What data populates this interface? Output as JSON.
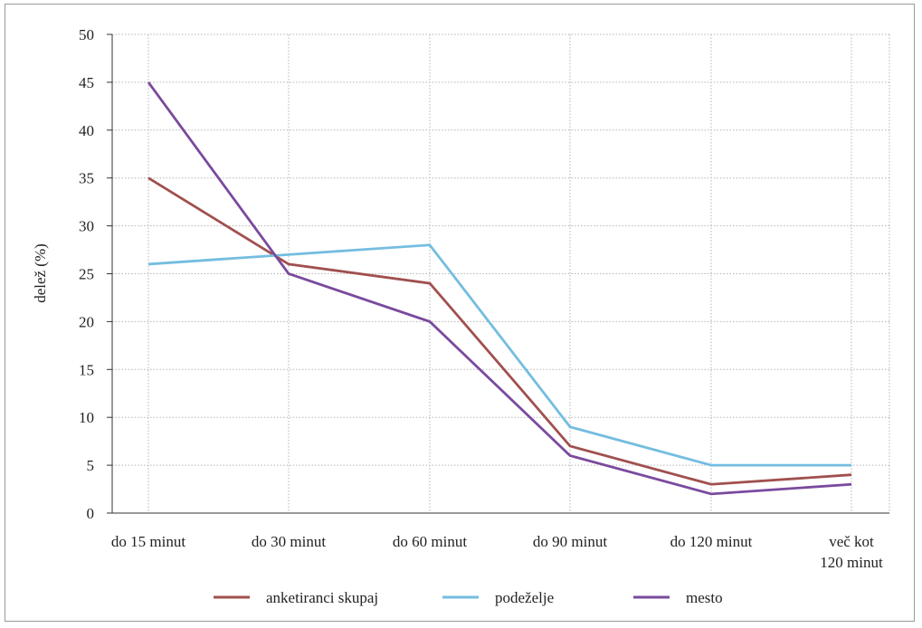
{
  "chart_data": {
    "type": "line",
    "categories": [
      "do 15 minut",
      "do 30 minut",
      "do 60 minut",
      "do 90 minut",
      "do 120 minut",
      "več kot 120 minut"
    ],
    "category_lines": [
      [
        "do 15 minut"
      ],
      [
        "do 30 minut"
      ],
      [
        "do 60 minut"
      ],
      [
        "do 90 minut"
      ],
      [
        "do 120 minut"
      ],
      [
        "več kot",
        "120 minut"
      ]
    ],
    "series": [
      {
        "name": "anketiranci skupaj",
        "color": "#a0504e",
        "values": [
          35,
          26,
          24,
          7,
          3,
          4
        ]
      },
      {
        "name": "podeželje",
        "color": "#74bde0",
        "values": [
          26,
          27,
          28,
          9,
          5,
          5
        ]
      },
      {
        "name": "mesto",
        "color": "#7a4a9e",
        "values": [
          45,
          25,
          20,
          6,
          2,
          3
        ]
      }
    ],
    "ylabel": "delež (%)",
    "ylim": [
      0,
      50
    ],
    "yticks": [
      0,
      5,
      10,
      15,
      20,
      25,
      30,
      35,
      40,
      45,
      50
    ],
    "grid": true,
    "legend_position": "bottom"
  }
}
